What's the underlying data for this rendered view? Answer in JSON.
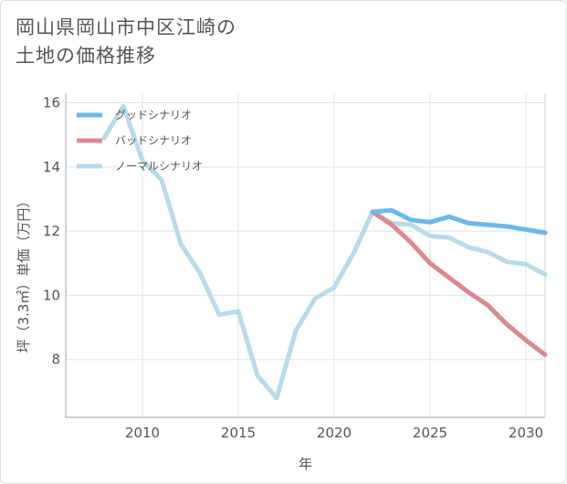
{
  "title_line1": "岡山県岡山市中区江崎の",
  "title_line2": "土地の価格推移",
  "chart_data": {
    "type": "line",
    "xlabel": "年",
    "ylabel": "坪（3.3㎡）単価（万円）",
    "xlim": [
      2006,
      2031
    ],
    "ylim": [
      6.2,
      16.3
    ],
    "x_ticks": [
      2010,
      2015,
      2020,
      2025,
      2030
    ],
    "y_ticks": [
      8,
      10,
      12,
      14,
      16
    ],
    "grid": true,
    "legend_position": "top-left",
    "series": [
      {
        "name": "グッドシナリオ",
        "color": "#6ab8ec",
        "x": [
          2022,
          2023,
          2024,
          2025,
          2026,
          2027,
          2028,
          2029,
          2030,
          2031
        ],
        "y": [
          12.6,
          12.65,
          12.35,
          12.28,
          12.45,
          12.25,
          12.2,
          12.15,
          12.05,
          11.95
        ]
      },
      {
        "name": "バッドシナリオ",
        "color": "#dd8890",
        "x": [
          2022,
          2023,
          2024,
          2025,
          2026,
          2027,
          2028,
          2029,
          2030,
          2031
        ],
        "y": [
          12.6,
          12.2,
          11.65,
          11.0,
          10.55,
          10.1,
          9.7,
          9.1,
          8.6,
          8.15
        ]
      },
      {
        "name": "ノーマルシナリオ",
        "color": "#b6dcec",
        "x": [
          2008,
          2009,
          2010,
          2011,
          2012,
          2013,
          2014,
          2015,
          2016,
          2017,
          2018,
          2019,
          2020,
          2021,
          2022,
          2023,
          2024,
          2025,
          2026,
          2027,
          2028,
          2029,
          2030,
          2031
        ],
        "y": [
          14.9,
          15.9,
          14.2,
          13.6,
          11.6,
          10.7,
          9.4,
          9.5,
          7.5,
          6.8,
          8.9,
          9.9,
          10.25,
          11.3,
          12.6,
          12.25,
          12.2,
          11.85,
          11.8,
          11.5,
          11.35,
          11.05,
          10.97,
          10.65
        ]
      }
    ]
  }
}
